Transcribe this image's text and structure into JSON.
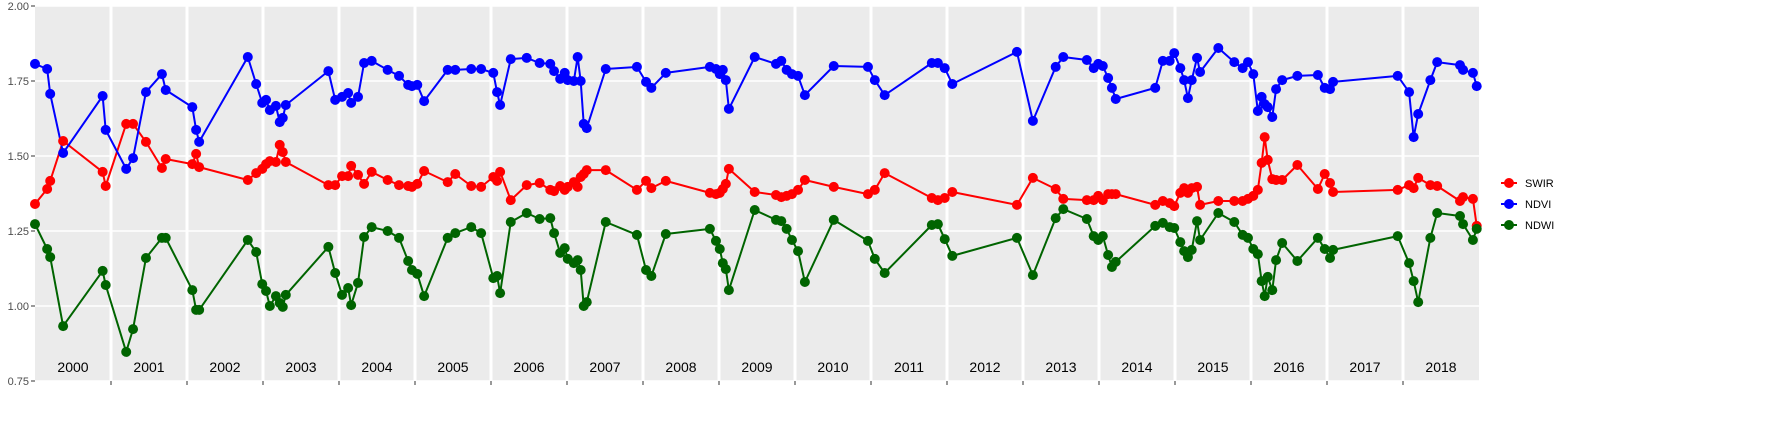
{
  "chart_data": {
    "type": "line",
    "x": [
      2000.0,
      2000.16,
      2000.2,
      2000.37,
      2000.89,
      2000.93,
      2001.2,
      2001.29,
      2001.46,
      2001.67,
      2001.72,
      2002.07,
      2002.12,
      2002.16,
      2002.8,
      2002.91,
      2002.99,
      2003.04,
      2003.09,
      2003.17,
      2003.22,
      2003.26,
      2003.3,
      2003.86,
      2003.95,
      2004.04,
      2004.12,
      2004.16,
      2004.25,
      2004.33,
      2004.43,
      2004.64,
      2004.79,
      2004.91,
      2004.96,
      2005.03,
      2005.12,
      2005.43,
      2005.53,
      2005.74,
      2005.87,
      2006.03,
      2006.08,
      2006.12,
      2006.26,
      2006.47,
      2006.64,
      2006.78,
      2006.83,
      2006.91,
      2006.97,
      2007.01,
      2007.09,
      2007.14,
      2007.18,
      2007.22,
      2007.26,
      2007.51,
      2007.92,
      2008.04,
      2008.11,
      2008.3,
      2008.88,
      2008.96,
      2009.01,
      2009.05,
      2009.09,
      2009.13,
      2009.47,
      2009.75,
      2009.82,
      2009.89,
      2009.96,
      2010.04,
      2010.13,
      2010.51,
      2010.96,
      2011.05,
      2011.18,
      2011.8,
      2011.88,
      2011.97,
      2012.07,
      2012.92,
      2013.13,
      2013.43,
      2013.53,
      2013.84,
      2013.93,
      2013.99,
      2014.05,
      2014.12,
      2014.17,
      2014.22,
      2014.74,
      2014.84,
      2014.93,
      2014.99,
      2015.07,
      2015.12,
      2015.17,
      2015.22,
      2015.29,
      2015.33,
      2015.57,
      2015.78,
      2015.89,
      2015.96,
      2016.03,
      2016.09,
      2016.14,
      2016.18,
      2016.22,
      2016.28,
      2016.33,
      2016.41,
      2016.61,
      2016.88,
      2016.97,
      2017.04,
      2017.08,
      2017.93,
      2018.08,
      2018.14,
      2018.2,
      2018.36,
      2018.45,
      2018.75,
      2018.79,
      2018.92,
      2018.97
    ],
    "series": [
      {
        "name": "SWIR",
        "color": "#ff0000",
        "values": [
          1.34,
          1.39,
          1.417,
          1.55,
          1.447,
          1.4,
          1.607,
          1.607,
          1.547,
          1.46,
          1.49,
          1.473,
          1.507,
          1.463,
          1.42,
          1.443,
          1.457,
          1.473,
          1.483,
          1.48,
          1.537,
          1.513,
          1.48,
          1.403,
          1.403,
          1.433,
          1.433,
          1.467,
          1.437,
          1.407,
          1.447,
          1.42,
          1.403,
          1.4,
          1.397,
          1.407,
          1.45,
          1.413,
          1.44,
          1.4,
          1.397,
          1.43,
          1.417,
          1.447,
          1.353,
          1.403,
          1.41,
          1.387,
          1.383,
          1.4,
          1.387,
          1.397,
          1.413,
          1.397,
          1.43,
          1.44,
          1.453,
          1.453,
          1.387,
          1.417,
          1.393,
          1.417,
          1.377,
          1.373,
          1.377,
          1.39,
          1.407,
          1.457,
          1.38,
          1.37,
          1.363,
          1.367,
          1.373,
          1.387,
          1.42,
          1.397,
          1.373,
          1.387,
          1.443,
          1.36,
          1.353,
          1.36,
          1.38,
          1.337,
          1.427,
          1.39,
          1.357,
          1.353,
          1.353,
          1.367,
          1.353,
          1.373,
          1.373,
          1.373,
          1.337,
          1.35,
          1.343,
          1.333,
          1.377,
          1.393,
          1.377,
          1.393,
          1.397,
          1.337,
          1.35,
          1.35,
          1.35,
          1.357,
          1.367,
          1.387,
          1.477,
          1.563,
          1.487,
          1.423,
          1.42,
          1.42,
          1.47,
          1.39,
          1.44,
          1.41,
          1.38,
          1.387,
          1.403,
          1.393,
          1.427,
          1.403,
          1.4,
          1.35,
          1.363,
          1.357,
          1.267
        ]
      },
      {
        "name": "NDVI",
        "color": "#0000ff",
        "values": [
          1.807,
          1.79,
          1.707,
          1.51,
          1.7,
          1.587,
          1.457,
          1.493,
          1.713,
          1.773,
          1.72,
          1.663,
          1.587,
          1.547,
          1.83,
          1.74,
          1.677,
          1.687,
          1.653,
          1.667,
          1.613,
          1.627,
          1.67,
          1.783,
          1.687,
          1.697,
          1.71,
          1.677,
          1.697,
          1.81,
          1.817,
          1.787,
          1.767,
          1.737,
          1.733,
          1.737,
          1.683,
          1.787,
          1.787,
          1.79,
          1.79,
          1.777,
          1.713,
          1.67,
          1.823,
          1.827,
          1.81,
          1.807,
          1.783,
          1.757,
          1.777,
          1.753,
          1.75,
          1.83,
          1.75,
          1.607,
          1.593,
          1.79,
          1.797,
          1.747,
          1.727,
          1.777,
          1.797,
          1.79,
          1.773,
          1.787,
          1.753,
          1.657,
          1.83,
          1.807,
          1.817,
          1.787,
          1.773,
          1.767,
          1.703,
          1.8,
          1.797,
          1.753,
          1.703,
          1.81,
          1.81,
          1.793,
          1.74,
          1.847,
          1.617,
          1.797,
          1.83,
          1.82,
          1.793,
          1.807,
          1.8,
          1.76,
          1.727,
          1.69,
          1.727,
          1.817,
          1.817,
          1.843,
          1.793,
          1.753,
          1.693,
          1.753,
          1.827,
          1.78,
          1.86,
          1.813,
          1.793,
          1.813,
          1.773,
          1.65,
          1.697,
          1.673,
          1.663,
          1.63,
          1.723,
          1.753,
          1.767,
          1.77,
          1.727,
          1.723,
          1.747,
          1.767,
          1.713,
          1.563,
          1.64,
          1.753,
          1.813,
          1.803,
          1.787,
          1.777,
          1.733
        ]
      },
      {
        "name": "NDWI",
        "color": "#006400",
        "values": [
          1.273,
          1.19,
          1.163,
          0.933,
          1.117,
          1.07,
          0.847,
          0.923,
          1.16,
          1.227,
          1.227,
          1.053,
          0.987,
          0.987,
          1.22,
          1.18,
          1.073,
          1.05,
          1.0,
          1.033,
          1.01,
          0.997,
          1.037,
          1.197,
          1.11,
          1.037,
          1.06,
          1.003,
          1.077,
          1.23,
          1.263,
          1.25,
          1.227,
          1.15,
          1.12,
          1.107,
          1.033,
          1.227,
          1.243,
          1.263,
          1.243,
          1.093,
          1.1,
          1.043,
          1.28,
          1.31,
          1.29,
          1.293,
          1.243,
          1.177,
          1.193,
          1.157,
          1.143,
          1.153,
          1.12,
          1.0,
          1.013,
          1.28,
          1.237,
          1.12,
          1.1,
          1.24,
          1.257,
          1.217,
          1.19,
          1.143,
          1.123,
          1.053,
          1.32,
          1.287,
          1.283,
          1.257,
          1.22,
          1.183,
          1.08,
          1.287,
          1.217,
          1.157,
          1.11,
          1.27,
          1.273,
          1.223,
          1.167,
          1.227,
          1.103,
          1.293,
          1.323,
          1.29,
          1.233,
          1.22,
          1.233,
          1.17,
          1.13,
          1.147,
          1.267,
          1.277,
          1.263,
          1.26,
          1.213,
          1.183,
          1.163,
          1.187,
          1.283,
          1.22,
          1.31,
          1.28,
          1.237,
          1.227,
          1.19,
          1.173,
          1.083,
          1.033,
          1.097,
          1.053,
          1.153,
          1.21,
          1.15,
          1.227,
          1.19,
          1.16,
          1.187,
          1.233,
          1.143,
          1.083,
          1.013,
          1.227,
          1.31,
          1.3,
          1.273,
          1.22,
          1.257
        ]
      }
    ],
    "xlim": [
      2000,
      2019
    ],
    "xticks": [
      2001,
      2002,
      2003,
      2004,
      2005,
      2006,
      2007,
      2008,
      2009,
      2010,
      2011,
      2012,
      2013,
      2014,
      2015,
      2016,
      2017,
      2018
    ],
    "year_labels": [
      "2000",
      "2001",
      "2002",
      "2003",
      "2004",
      "2005",
      "2006",
      "2007",
      "2008",
      "2009",
      "2010",
      "2011",
      "2012",
      "2013",
      "2014",
      "2015",
      "2016",
      "2017",
      "2018"
    ],
    "ylim": [
      0.75,
      2.0
    ],
    "yticks": [
      {
        "value": 0.75,
        "label": "0.75"
      },
      {
        "value": 1.0,
        "label": "1.00"
      },
      {
        "value": 1.25,
        "label": "1.25"
      },
      {
        "value": 1.5,
        "label": "1.50"
      },
      {
        "value": 1.75,
        "label": "1.75"
      },
      {
        "value": 2.0,
        "label": "2.00"
      }
    ],
    "grid": true,
    "legend": "right"
  }
}
